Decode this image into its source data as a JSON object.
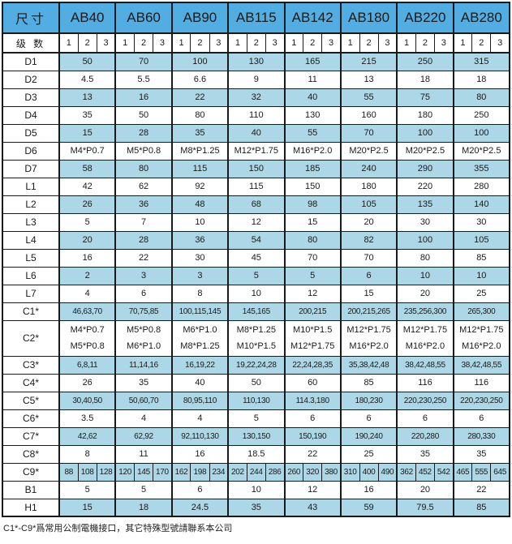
{
  "colors": {
    "header_blue": "#52AEE2",
    "stripe_blue": "#ACD7E7",
    "border": "#1A1A1A",
    "text": "#1A1A1A"
  },
  "table": {
    "corner_label": "尺寸",
    "stage_label": "级 数",
    "sizes": [
      "AB40",
      "AB60",
      "AB90",
      "AB115",
      "AB142",
      "AB180",
      "AB220",
      "AB280"
    ],
    "stages": [
      "1",
      "2",
      "3"
    ],
    "rows": [
      {
        "label": "D1",
        "striped": true,
        "values": [
          "50",
          "70",
          "100",
          "130",
          "165",
          "215",
          "250",
          "315"
        ]
      },
      {
        "label": "D2",
        "striped": false,
        "values": [
          "4.5",
          "5.5",
          "6.6",
          "9",
          "11",
          "13",
          "18",
          "18"
        ]
      },
      {
        "label": "D3",
        "striped": true,
        "values": [
          "13",
          "16",
          "22",
          "32",
          "40",
          "55",
          "75",
          "80"
        ]
      },
      {
        "label": "D4",
        "striped": false,
        "values": [
          "35",
          "50",
          "80",
          "110",
          "130",
          "160",
          "180",
          "250"
        ]
      },
      {
        "label": "D5",
        "striped": true,
        "values": [
          "15",
          "28",
          "35",
          "40",
          "55",
          "70",
          "100",
          "100"
        ]
      },
      {
        "label": "D6",
        "striped": false,
        "values": [
          "M4*P0.7",
          "M5*P0.8",
          "M8*P1.25",
          "M12*P1.75",
          "M16*P2.0",
          "M20*P2.5",
          "M20*P2.5",
          "M20*P2.5"
        ]
      },
      {
        "label": "D7",
        "striped": true,
        "values": [
          "58",
          "80",
          "115",
          "150",
          "185",
          "240",
          "290",
          "355"
        ]
      },
      {
        "label": "L1",
        "striped": false,
        "values": [
          "42",
          "62",
          "92",
          "115",
          "150",
          "180",
          "220",
          "280"
        ]
      },
      {
        "label": "L2",
        "striped": true,
        "values": [
          "26",
          "36",
          "48",
          "68",
          "98",
          "105",
          "135",
          "140"
        ]
      },
      {
        "label": "L3",
        "striped": false,
        "values": [
          "5",
          "7",
          "10",
          "12",
          "15",
          "20",
          "30",
          "30"
        ]
      },
      {
        "label": "L4",
        "striped": true,
        "values": [
          "20",
          "28",
          "36",
          "54",
          "80",
          "82",
          "100",
          "105"
        ]
      },
      {
        "label": "L5",
        "striped": false,
        "values": [
          "16",
          "22",
          "30",
          "45",
          "70",
          "70",
          "80",
          "85"
        ]
      },
      {
        "label": "L6",
        "striped": true,
        "values": [
          "2",
          "3",
          "3",
          "5",
          "5",
          "6",
          "10",
          "10"
        ]
      },
      {
        "label": "L7",
        "striped": false,
        "values": [
          "4",
          "6",
          "8",
          "10",
          "12",
          "15",
          "20",
          "25"
        ]
      },
      {
        "label": "C1*",
        "striped": true,
        "dense": true,
        "values": [
          "46,63,70",
          "70,75,85",
          "100,115,145",
          "145,165",
          "200,215",
          "200,215,265",
          "235,256,300",
          "265,300"
        ]
      },
      {
        "label": "C2*",
        "striped": false,
        "two_line": true,
        "values": [
          [
            "M4*P0.7",
            "M5*P0.8"
          ],
          [
            "M5*P0.8",
            "M6*P1.0"
          ],
          [
            "M6*P1.0",
            "M8*P1.25"
          ],
          [
            "M8*P1.25",
            "M10*P1.5"
          ],
          [
            "M10*P1.5",
            "M12*P1.75"
          ],
          [
            "M12*P1.75",
            "M16*P2.0"
          ],
          [
            "M12*P1.75",
            "M16*P2.0"
          ],
          [
            "M12*P1.75",
            "M16*P2.0"
          ]
        ]
      },
      {
        "label": "C3*",
        "striped": true,
        "dense": true,
        "values": [
          "6,8,11",
          "11,14,16",
          "16,19,22",
          "19,22,24,28",
          "22,24,28,35",
          "35,38,42,48",
          "38,42,48,55",
          "38,42,48,55"
        ]
      },
      {
        "label": "C4*",
        "striped": false,
        "values": [
          "26",
          "35",
          "40",
          "50",
          "60",
          "85",
          "116",
          "116"
        ]
      },
      {
        "label": "C5*",
        "striped": true,
        "dense": true,
        "values": [
          "30,40,50",
          "50,60,70",
          "80,95,110",
          "110,130",
          "114.3,180",
          "180,230",
          "220,230,250",
          "220,230,250"
        ]
      },
      {
        "label": "C6*",
        "striped": false,
        "values": [
          "3.5",
          "4",
          "4",
          "5",
          "6",
          "6",
          "6",
          "6"
        ]
      },
      {
        "label": "C7*",
        "striped": true,
        "dense": true,
        "values": [
          "42,62",
          "62,92",
          "92,110,130",
          "130,150",
          "150,190",
          "190,240",
          "220,280",
          "280,330"
        ]
      },
      {
        "label": "C8*",
        "striped": false,
        "values": [
          "8",
          "11",
          "16",
          "18.5",
          "22",
          "25",
          "35",
          "35"
        ]
      },
      {
        "label": "C9*",
        "striped": true,
        "split": true,
        "values": [
          [
            "88",
            "108",
            "128"
          ],
          [
            "120",
            "145",
            "170"
          ],
          [
            "162",
            "198",
            "234"
          ],
          [
            "202",
            "244",
            "286"
          ],
          [
            "260",
            "320",
            "380"
          ],
          [
            "310",
            "400",
            "490"
          ],
          [
            "362",
            "452",
            "542"
          ],
          [
            "465",
            "555",
            "645"
          ]
        ]
      },
      {
        "label": "B1",
        "striped": false,
        "values": [
          "5",
          "5",
          "6",
          "10",
          "12",
          "16",
          "20",
          "22"
        ]
      },
      {
        "label": "H1",
        "striped": true,
        "values": [
          "15",
          "18",
          "24.5",
          "35",
          "43",
          "59",
          "79.5",
          "85"
        ]
      }
    ],
    "footnote": "C1*-C9*爲常用公制電機接口，其它特殊型號請聯系本公司"
  }
}
